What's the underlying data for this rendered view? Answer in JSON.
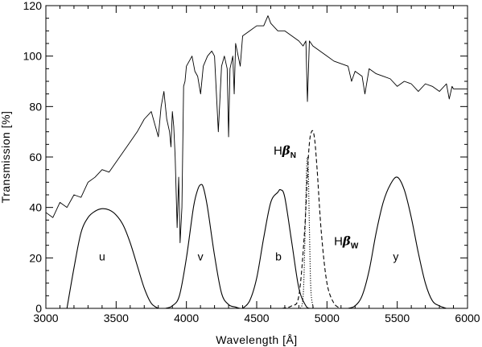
{
  "chart_data": {
    "type": "line",
    "xlabel": "Wavelength [Å]",
    "ylabel": "Transmission [%]",
    "xlim": [
      3000,
      6000
    ],
    "ylim": [
      0,
      120
    ],
    "x_ticks": [
      3000,
      3500,
      4000,
      4500,
      5000,
      5500,
      6000
    ],
    "y_ticks": [
      0,
      20,
      40,
      60,
      80,
      100,
      120
    ],
    "grid": false,
    "legend": "none",
    "spectrum": {
      "line_style": "solid",
      "x": [
        3000,
        3050,
        3100,
        3150,
        3200,
        3250,
        3300,
        3350,
        3400,
        3450,
        3500,
        3550,
        3600,
        3650,
        3700,
        3750,
        3780,
        3800,
        3820,
        3840,
        3860,
        3880,
        3890,
        3900,
        3910,
        3920,
        3934,
        3945,
        3955,
        3968,
        3980,
        3990,
        4000,
        4020,
        4040,
        4060,
        4080,
        4101,
        4120,
        4150,
        4180,
        4200,
        4227,
        4250,
        4270,
        4290,
        4300,
        4310,
        4330,
        4340,
        4350,
        4383,
        4400,
        4450,
        4500,
        4550,
        4580,
        4600,
        4650,
        4700,
        4750,
        4800,
        4830,
        4850,
        4861,
        4875,
        4900,
        4950,
        5000,
        5050,
        5100,
        5150,
        5175,
        5200,
        5250,
        5270,
        5300,
        5350,
        5400,
        5450,
        5500,
        5550,
        5600,
        5650,
        5700,
        5750,
        5800,
        5850,
        5870,
        5890,
        5900,
        5950,
        6000
      ],
      "y": [
        38,
        36,
        42,
        40,
        45,
        44,
        50,
        52,
        55,
        54,
        58,
        62,
        66,
        70,
        75,
        78,
        72,
        68,
        80,
        86,
        75,
        70,
        64,
        78,
        72,
        60,
        32,
        52,
        26,
        40,
        88,
        90,
        96,
        98,
        100,
        94,
        92,
        85,
        96,
        100,
        102,
        100,
        70,
        96,
        100,
        95,
        68,
        95,
        100,
        85,
        105,
        96,
        108,
        110,
        112,
        112,
        116,
        113,
        110,
        110,
        108,
        106,
        104,
        106,
        82,
        106,
        104,
        102,
        100,
        98,
        97,
        96,
        90,
        94,
        92,
        85,
        95,
        93,
        92,
        91,
        88,
        90,
        89,
        86,
        89,
        88,
        86,
        89,
        83,
        88,
        87,
        87,
        87
      ]
    },
    "series": [
      {
        "name": "u",
        "line_style": "solid",
        "x": [
          3150,
          3200,
          3250,
          3300,
          3350,
          3400,
          3450,
          3500,
          3550,
          3600,
          3650,
          3700,
          3750,
          3800
        ],
        "values": [
          0,
          16,
          30,
          36,
          38.5,
          39.5,
          39,
          37,
          33,
          26,
          17,
          8,
          2,
          0
        ]
      },
      {
        "name": "v",
        "line_style": "solid",
        "x": [
          3850,
          3900,
          3950,
          4000,
          4050,
          4080,
          4100,
          4120,
          4150,
          4200,
          4250,
          4300,
          4350,
          4380
        ],
        "values": [
          0,
          1,
          5,
          20,
          40,
          47,
          49,
          48,
          40,
          21,
          6,
          1.5,
          0.5,
          0
        ]
      },
      {
        "name": "b",
        "line_style": "solid",
        "x": [
          4400,
          4450,
          4500,
          4550,
          4600,
          4650,
          4670,
          4700,
          4750,
          4800,
          4850,
          4880
        ],
        "values": [
          0,
          3,
          12,
          28,
          42,
          46,
          47,
          44,
          26,
          8,
          1,
          0
        ]
      },
      {
        "name": "Hβ_N",
        "line_style": "dotted",
        "x": [
          4810,
          4825,
          4835,
          4845,
          4855,
          4861,
          4867,
          4875,
          4885,
          4900,
          4910
        ],
        "values": [
          0,
          2,
          10,
          32,
          55,
          60,
          55,
          32,
          8,
          1,
          0
        ]
      },
      {
        "name": "Hβ_W",
        "line_style": "dashed",
        "x": [
          4680,
          4750,
          4800,
          4840,
          4870,
          4890,
          4910,
          4930,
          4960,
          5000,
          5050,
          5100
        ],
        "values": [
          0,
          1,
          5,
          30,
          62,
          70,
          68,
          55,
          30,
          10,
          2,
          0
        ]
      },
      {
        "name": "y",
        "line_style": "solid",
        "x": [
          5150,
          5200,
          5250,
          5300,
          5350,
          5400,
          5450,
          5500,
          5550,
          5600,
          5650,
          5700,
          5750,
          5800,
          5850
        ],
        "values": [
          0,
          1,
          5,
          15,
          30,
          42,
          49,
          52,
          47,
          36,
          22,
          10,
          3,
          1,
          0
        ]
      }
    ],
    "annotations": [
      {
        "id": "u",
        "text": "u",
        "x": 3400,
        "y": 19
      },
      {
        "id": "v",
        "text": "v",
        "x": 4100,
        "y": 19
      },
      {
        "id": "b",
        "text": "b",
        "x": 4655,
        "y": 19
      },
      {
        "id": "y",
        "text": "y",
        "x": 5490,
        "y": 19
      },
      {
        "id": "hbn",
        "text": "H",
        "beta": "β",
        "sub": "N",
        "x": 4620,
        "y": 61
      },
      {
        "id": "hbw",
        "text": "H",
        "beta": "β",
        "sub": "W",
        "x": 5050,
        "y": 25
      }
    ]
  }
}
